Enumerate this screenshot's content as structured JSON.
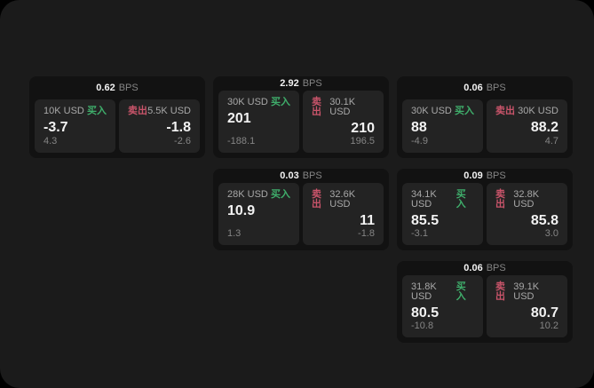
{
  "labels": {
    "bps_unit": "BPS",
    "buy": "买入",
    "sell": "卖出"
  },
  "colors": {
    "background": "#1b1b1b",
    "card": "#121212",
    "panel": "#232323",
    "buy_green": "#3fae6b",
    "sell_red": "#c9546a"
  },
  "cards": [
    {
      "bps": "0.62",
      "grid": {
        "row": 1,
        "col": 1
      },
      "buy": {
        "amount": "10K USD",
        "price": "-3.7",
        "sub": "4.3"
      },
      "sell": {
        "amount": "5.5K USD",
        "price": "-1.8",
        "sub": "-2.6"
      }
    },
    {
      "bps": "2.92",
      "grid": {
        "row": 1,
        "col": 2
      },
      "buy": {
        "amount": "30K USD",
        "price": "201",
        "sub": "-188.1"
      },
      "sell": {
        "amount": "30.1K USD",
        "price": "210",
        "sub": "196.5"
      }
    },
    {
      "bps": "0.06",
      "grid": {
        "row": 1,
        "col": 3
      },
      "buy": {
        "amount": "30K USD",
        "price": "88",
        "sub": "-4.9"
      },
      "sell": {
        "amount": "30K USD",
        "price": "88.2",
        "sub": "4.7"
      }
    },
    {
      "bps": "0.03",
      "grid": {
        "row": 2,
        "col": 2
      },
      "buy": {
        "amount": "28K USD",
        "price": "10.9",
        "sub": "1.3"
      },
      "sell": {
        "amount": "32.6K USD",
        "price": "11",
        "sub": "-1.8"
      }
    },
    {
      "bps": "0.09",
      "grid": {
        "row": 2,
        "col": 3
      },
      "buy": {
        "amount": "34.1K USD",
        "price": "85.5",
        "sub": "-3.1"
      },
      "sell": {
        "amount": "32.8K USD",
        "price": "85.8",
        "sub": "3.0"
      }
    },
    {
      "bps": "0.06",
      "grid": {
        "row": 3,
        "col": 3
      },
      "buy": {
        "amount": "31.8K USD",
        "price": "80.5",
        "sub": "-10.8"
      },
      "sell": {
        "amount": "39.1K USD",
        "price": "80.7",
        "sub": "10.2"
      }
    }
  ]
}
